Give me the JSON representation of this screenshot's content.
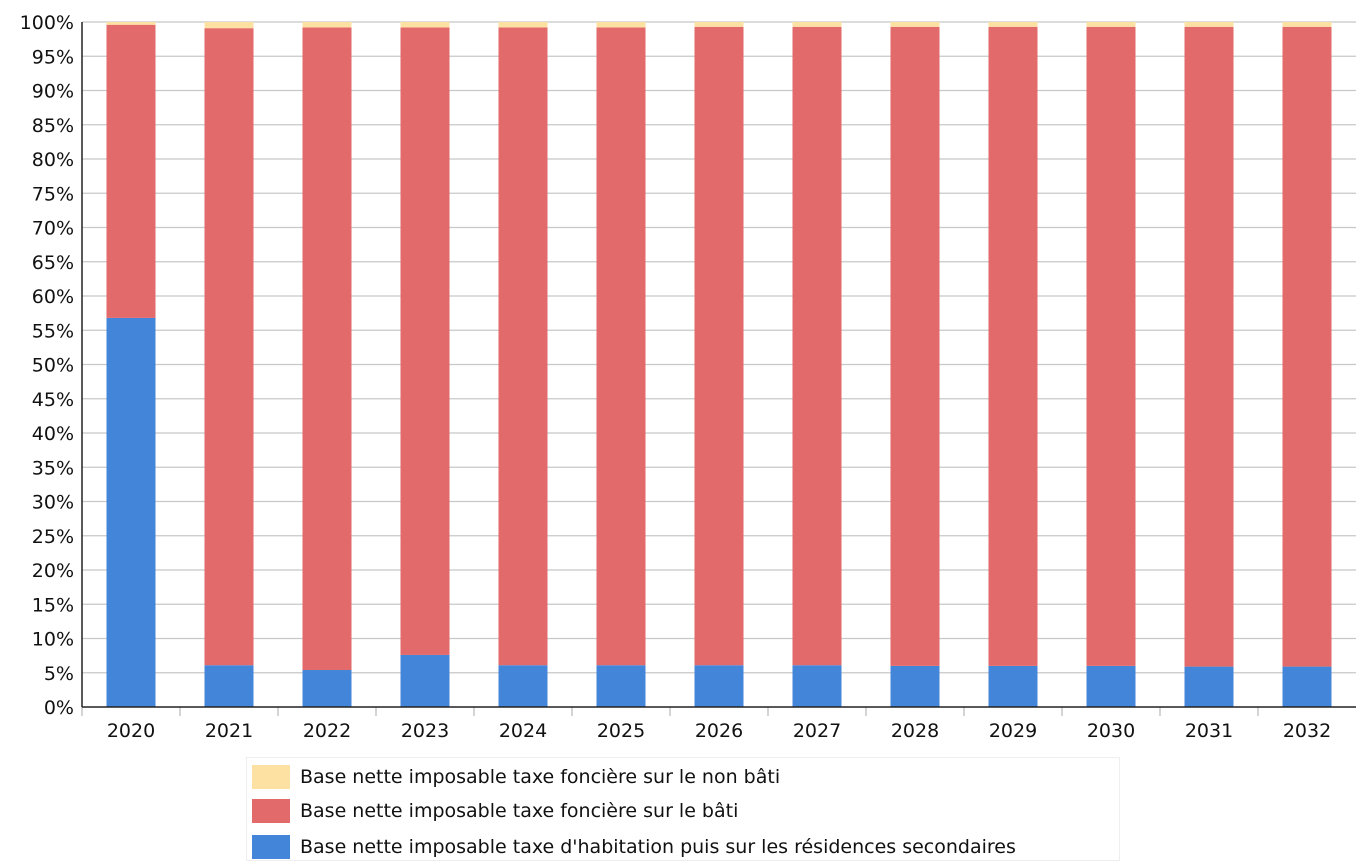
{
  "chart_data": {
    "type": "bar",
    "stacked": true,
    "title": "",
    "xlabel": "",
    "ylabel": "",
    "ylim": [
      0,
      100
    ],
    "ytick_step": 5,
    "y_tick_suffix": "%",
    "grid": true,
    "legend_position": "bottom",
    "categories": [
      "2020",
      "2021",
      "2022",
      "2023",
      "2024",
      "2025",
      "2026",
      "2027",
      "2028",
      "2029",
      "2030",
      "2031",
      "2032"
    ],
    "series": [
      {
        "name": "Base nette imposable taxe d'habitation puis sur les résidences secondaires",
        "color": "#4285d9",
        "values": [
          56.8,
          6.1,
          5.4,
          7.6,
          6.1,
          6.1,
          6.1,
          6.1,
          6.0,
          6.0,
          6.0,
          5.9,
          5.9
        ]
      },
      {
        "name": "Base nette imposable taxe foncière sur le bâti",
        "color": "#e36a6a",
        "values": [
          42.8,
          93.0,
          93.8,
          91.6,
          93.1,
          93.1,
          93.2,
          93.2,
          93.3,
          93.3,
          93.3,
          93.4,
          93.4
        ]
      },
      {
        "name": "Base nette imposable taxe foncière sur le non bâti",
        "color": "#fde1a3",
        "values": [
          0.4,
          0.9,
          0.8,
          0.8,
          0.8,
          0.8,
          0.7,
          0.7,
          0.7,
          0.7,
          0.7,
          0.7,
          0.7
        ]
      }
    ]
  },
  "legend": {
    "items": [
      {
        "label": "Base nette imposable taxe foncière sur le non bâti",
        "color": "#fde1a3"
      },
      {
        "label": "Base nette imposable taxe foncière sur le bâti",
        "color": "#e36a6a"
      },
      {
        "label": "Base nette imposable taxe d'habitation puis sur les résidences secondaires",
        "color": "#4285d9"
      }
    ]
  }
}
